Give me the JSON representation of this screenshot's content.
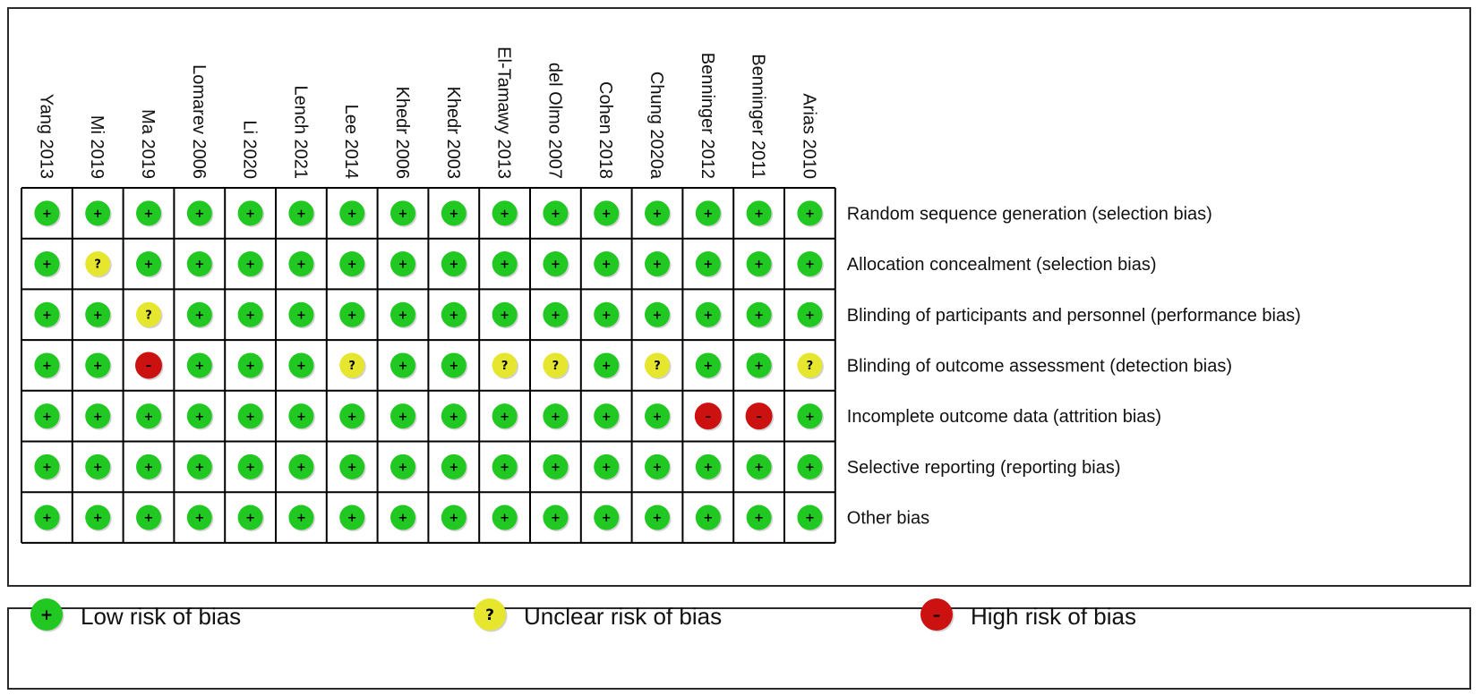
{
  "chart_data": {
    "type": "table",
    "title": "",
    "studies": [
      "Yang 2013",
      "Mi 2019",
      "Ma 2019",
      "Lomarev 2006",
      "Li 2020",
      "Lench 2021",
      "Lee 2014",
      "Khedr 2006",
      "Khedr 2003",
      "El-Tamawy 2013",
      "del Olmo 2007",
      "Cohen 2018",
      "Chung 2020a",
      "Benninger 2012",
      "Benninger 2011",
      "Arias 2010"
    ],
    "domains": [
      "Random sequence generation (selection bias)",
      "Allocation concealment (selection bias)",
      "Blinding of participants and personnel (performance bias)",
      "Blinding of outcome assessment (detection bias)",
      "Incomplete outcome data (attrition bias)",
      "Selective reporting (reporting bias)",
      "Other bias"
    ],
    "judgements": [
      [
        "low",
        "low",
        "low",
        "low",
        "low",
        "low",
        "low",
        "low",
        "low",
        "low",
        "low",
        "low",
        "low",
        "low",
        "low",
        "low"
      ],
      [
        "low",
        "unclear",
        "low",
        "low",
        "low",
        "low",
        "low",
        "low",
        "low",
        "low",
        "low",
        "low",
        "low",
        "low",
        "low",
        "low"
      ],
      [
        "low",
        "low",
        "unclear",
        "low",
        "low",
        "low",
        "low",
        "low",
        "low",
        "low",
        "low",
        "low",
        "low",
        "low",
        "low",
        "low"
      ],
      [
        "low",
        "low",
        "high",
        "low",
        "low",
        "low",
        "unclear",
        "low",
        "low",
        "unclear",
        "unclear",
        "low",
        "unclear",
        "low",
        "low",
        "unclear"
      ],
      [
        "low",
        "low",
        "low",
        "low",
        "low",
        "low",
        "low",
        "low",
        "low",
        "low",
        "low",
        "low",
        "low",
        "high",
        "high",
        "low"
      ],
      [
        "low",
        "low",
        "low",
        "low",
        "low",
        "low",
        "low",
        "low",
        "low",
        "low",
        "low",
        "low",
        "low",
        "low",
        "low",
        "low"
      ],
      [
        "low",
        "low",
        "low",
        "low",
        "low",
        "low",
        "low",
        "low",
        "low",
        "low",
        "low",
        "low",
        "low",
        "low",
        "low",
        "low"
      ]
    ],
    "legend": [
      {
        "key": "low",
        "label": "Low risk of bias",
        "symbol": "+",
        "color": "#22c822"
      },
      {
        "key": "unclear",
        "label": "Unclear risk of bias",
        "symbol": "?",
        "color": "#e6e62e"
      },
      {
        "key": "high",
        "label": "High risk of bias",
        "symbol": "–",
        "color": "#cc1111"
      }
    ]
  }
}
